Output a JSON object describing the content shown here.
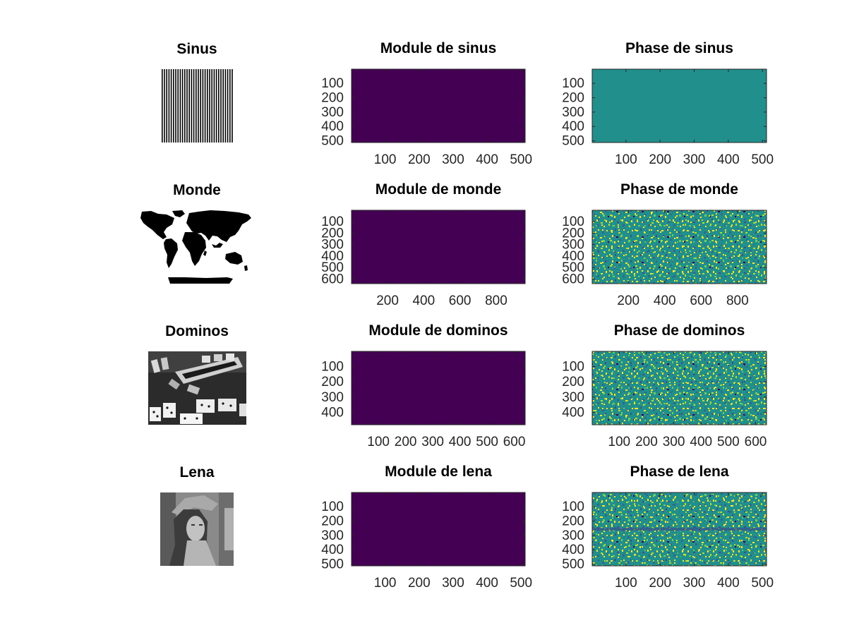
{
  "chart_data": [
    {
      "type": "image",
      "title": "Sinus",
      "content": "vertical-stripes"
    },
    {
      "type": "heatmap",
      "title": "Module de sinus",
      "yticks": [
        "100",
        "200",
        "300",
        "400",
        "500"
      ],
      "xticks": [
        "100",
        "200",
        "300",
        "400",
        "500"
      ],
      "xlim": [
        1,
        512
      ],
      "ylim": [
        1,
        512
      ],
      "pattern": "uniform-dark"
    },
    {
      "type": "heatmap",
      "title": "Phase de sinus",
      "yticks": [
        "100",
        "200",
        "300",
        "400",
        "500"
      ],
      "xticks": [
        "100",
        "200",
        "300",
        "400",
        "500"
      ],
      "xlim": [
        1,
        512
      ],
      "ylim": [
        1,
        512
      ],
      "pattern": "uniform-mid"
    },
    {
      "type": "image",
      "title": "Monde",
      "content": "world-map"
    },
    {
      "type": "heatmap",
      "title": "Module de monde",
      "yticks": [
        "100",
        "200",
        "300",
        "400",
        "500",
        "600"
      ],
      "xticks": [
        "200",
        "400",
        "600",
        "800"
      ],
      "xlim": [
        1,
        960
      ],
      "ylim": [
        1,
        640
      ],
      "pattern": "uniform-dark"
    },
    {
      "type": "heatmap",
      "title": "Phase de monde",
      "yticks": [
        "100",
        "200",
        "300",
        "400",
        "500",
        "600"
      ],
      "xticks": [
        "200",
        "400",
        "600",
        "800"
      ],
      "xlim": [
        1,
        960
      ],
      "ylim": [
        1,
        640
      ],
      "pattern": "noise"
    },
    {
      "type": "image",
      "title": "Dominos",
      "content": "dominos-photo"
    },
    {
      "type": "heatmap",
      "title": "Module de dominos",
      "yticks": [
        "100",
        "200",
        "300",
        "400"
      ],
      "xticks": [
        "100",
        "200",
        "300",
        "400",
        "500",
        "600"
      ],
      "xlim": [
        1,
        640
      ],
      "ylim": [
        1,
        480
      ],
      "pattern": "uniform-dark"
    },
    {
      "type": "heatmap",
      "title": "Phase de dominos",
      "yticks": [
        "100",
        "200",
        "300",
        "400"
      ],
      "xticks": [
        "100",
        "200",
        "300",
        "400",
        "500",
        "600"
      ],
      "xlim": [
        1,
        640
      ],
      "ylim": [
        1,
        480
      ],
      "pattern": "noise"
    },
    {
      "type": "image",
      "title": "Lena",
      "content": "portrait-photo"
    },
    {
      "type": "heatmap",
      "title": "Module de lena",
      "yticks": [
        "100",
        "200",
        "300",
        "400",
        "500"
      ],
      "xticks": [
        "100",
        "200",
        "300",
        "400",
        "500"
      ],
      "xlim": [
        1,
        512
      ],
      "ylim": [
        1,
        512
      ],
      "pattern": "uniform-dark"
    },
    {
      "type": "heatmap",
      "title": "Phase de lena",
      "yticks": [
        "100",
        "200",
        "300",
        "400",
        "500"
      ],
      "xticks": [
        "100",
        "200",
        "300",
        "400",
        "500"
      ],
      "xlim": [
        1,
        512
      ],
      "ylim": [
        1,
        512
      ],
      "pattern": "noise-cross"
    }
  ],
  "colors": {
    "module": "#440154",
    "phase_uniform": "#21908c",
    "viridis_low": "#3b528b",
    "viridis_mid": "#21908c",
    "viridis_high": "#fde725",
    "axis": "#262626"
  }
}
